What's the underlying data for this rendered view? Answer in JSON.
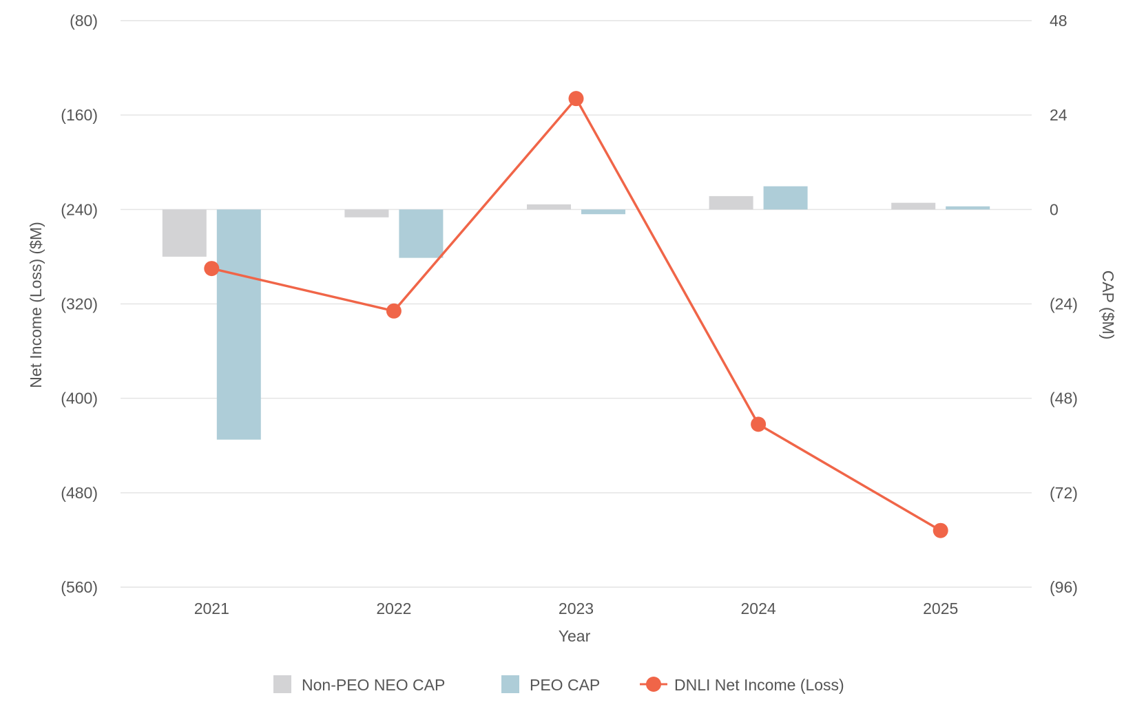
{
  "chart_data": {
    "type": "bar",
    "categories": [
      "2021",
      "2022",
      "2023",
      "2024",
      "2025"
    ],
    "xlabel": "Year",
    "y_left": {
      "label": "Net Income (Loss) ($M)",
      "lim": [
        -560,
        -80
      ],
      "ticks": [
        -80,
        -160,
        -240,
        -320,
        -400,
        -480,
        -560
      ],
      "tick_labels": [
        "(80)",
        "(160)",
        "(240)",
        "(320)",
        "(400)",
        "(480)",
        "(560)"
      ]
    },
    "y_right": {
      "label": "CAP ($M)",
      "lim": [
        -96,
        48
      ],
      "ticks": [
        48,
        24,
        0,
        -24,
        -48,
        -72,
        -96
      ],
      "tick_labels": [
        "48",
        "24",
        "0",
        "(24)",
        "(48)",
        "(72)",
        "(96)"
      ]
    },
    "series": [
      {
        "name": "Non-PEO NEO CAP",
        "type": "bar",
        "axis": "right",
        "color": "#d3d3d5",
        "values": [
          -12,
          -2,
          1.3,
          3.4,
          1.7
        ]
      },
      {
        "name": "PEO CAP",
        "type": "bar",
        "axis": "right",
        "color": "#aecdd8",
        "values": [
          -58.5,
          -12.3,
          -1.2,
          5.9,
          0.8
        ]
      },
      {
        "name": "DNLI Net Income (Loss)",
        "type": "line",
        "axis": "left",
        "color": "#f06548",
        "values": [
          -290,
          -326,
          -146,
          -422,
          -512
        ]
      }
    ],
    "grid": true,
    "legend_position": "bottom-center"
  }
}
